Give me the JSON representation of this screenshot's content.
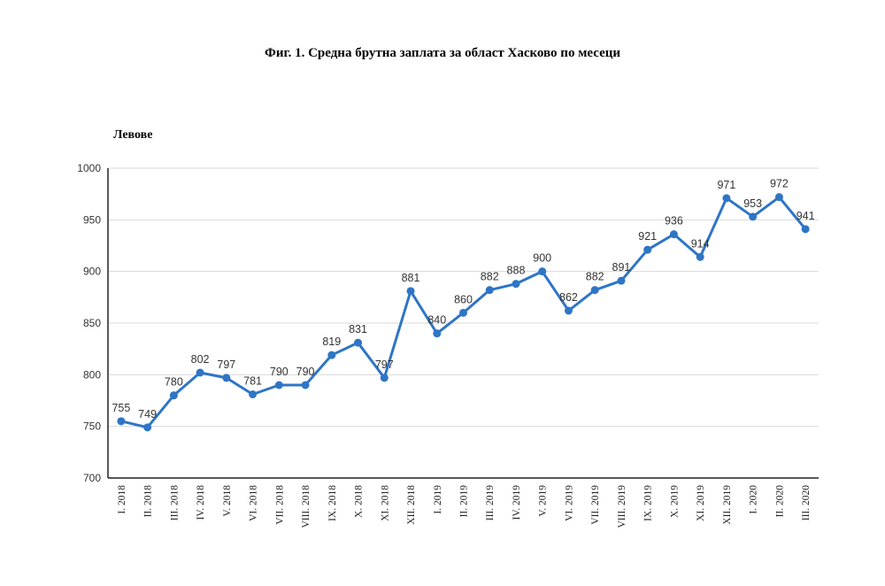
{
  "chart_data": {
    "type": "line",
    "title": "Фиг. 1. Средна брутна заплата за област Хасково по месеци",
    "ylabel": "Левове",
    "xlabel": "",
    "ylim": [
      700,
      1000
    ],
    "yticks": [
      700,
      750,
      800,
      850,
      900,
      950,
      1000
    ],
    "grid": true,
    "legend": "none",
    "color": "#2E75C6",
    "categories": [
      "I. 2018",
      "II. 2018",
      "III. 2018",
      "IV. 2018",
      "V. 2018",
      "VI. 2018",
      "VII. 2018",
      "VIII. 2018",
      "IX. 2018",
      "X. 2018",
      "XI. 2018",
      "XII. 2018",
      "I. 2019",
      "II. 2019",
      "III. 2019",
      "IV. 2019",
      "V. 2019",
      "VI. 2019",
      "VII. 2019",
      "VIII. 2019",
      "IX. 2019",
      "X. 2019",
      "XI. 2019",
      "XII. 2019",
      "I. 2020",
      "II. 2020",
      "III. 2020"
    ],
    "values": [
      755,
      749,
      780,
      802,
      797,
      781,
      790,
      790,
      819,
      831,
      797,
      881,
      840,
      860,
      882,
      888,
      900,
      862,
      882,
      891,
      921,
      936,
      914,
      971,
      953,
      972,
      941
    ]
  }
}
